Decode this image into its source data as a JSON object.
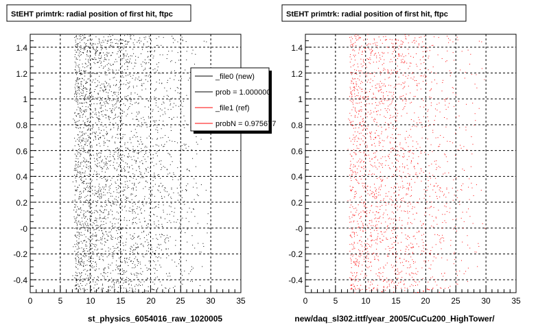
{
  "chart_data": [
    {
      "type": "scatter",
      "title": "StEHT primtrk: radial position of first hit, ftpc",
      "xlabel": "st_physics_6054016_raw_1020005",
      "ylabel": "",
      "xlim": [
        0,
        35
      ],
      "ylim": [
        -0.5,
        1.5
      ],
      "x_ticks": [
        "0",
        "5",
        "10",
        "15",
        "20",
        "25",
        "30",
        "35"
      ],
      "y_ticks": [
        "-0.4",
        "-0.2",
        "-0",
        "0.2",
        "0.4",
        "0.6",
        "0.8",
        "1",
        "1.2",
        "1.4"
      ],
      "grid": true,
      "legend_position": "top-right",
      "series": [
        {
          "name": "_file0 (new)",
          "color": "#000000",
          "description": "dense point cloud",
          "x_range": [
            7,
            30
          ],
          "peak_x": 8.5
        }
      ],
      "legend": [
        {
          "label": "_file0 (new)",
          "color": "#000000"
        },
        {
          "label": "prob = 1.000000",
          "color": "#000000"
        },
        {
          "label": "_file1 (ref)",
          "color": "#ff0000"
        },
        {
          "label": "probN = 0.975677",
          "color": "#ff0000"
        }
      ]
    },
    {
      "type": "scatter",
      "title": "StEHT primtrk: radial position of first hit, ftpc",
      "xlabel": "new/daq_sl302.ittf/year_2005/CuCu200_HighTower/",
      "ylabel": "",
      "xlim": [
        0,
        35
      ],
      "ylim": [
        -0.5,
        1.5
      ],
      "x_ticks": [
        "0",
        "5",
        "10",
        "15",
        "20",
        "25",
        "30",
        "35"
      ],
      "y_ticks": [
        "-0.4",
        "-0.2",
        "-0",
        "0.2",
        "0.4",
        "0.6",
        "0.8",
        "1",
        "1.2",
        "1.4"
      ],
      "grid": true,
      "series": [
        {
          "name": "_file1 (ref)",
          "color": "#ff0000",
          "description": "dense point cloud",
          "x_range": [
            7,
            30
          ],
          "peak_x": 8.5
        }
      ]
    }
  ]
}
